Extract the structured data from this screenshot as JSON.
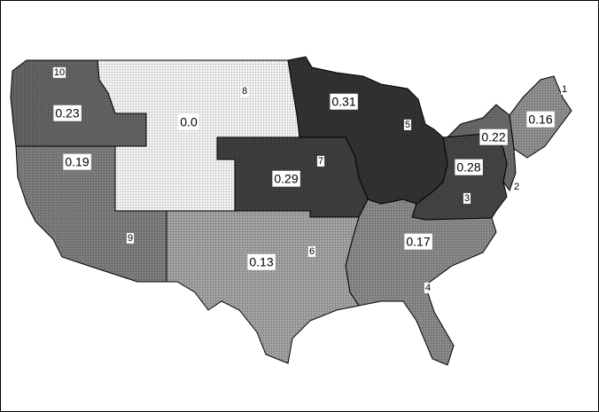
{
  "chart_data": {
    "type": "choropleth",
    "categories": [
      "1",
      "2",
      "3",
      "4",
      "5",
      "6",
      "7",
      "8",
      "9",
      "10"
    ],
    "values": [
      0.16,
      0.22,
      0.28,
      0.17,
      0.31,
      0.13,
      0.29,
      0,
      0.19,
      0.23
    ],
    "value_labels": [
      "0.16",
      "0.22",
      "0.28",
      "0.17",
      "0.31",
      "0.13",
      "0.29",
      "0.0",
      "0.19",
      "0.23"
    ]
  }
}
